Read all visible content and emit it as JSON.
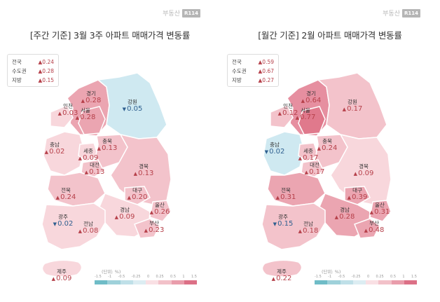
{
  "brand": {
    "name": "부동산",
    "badge": "R114"
  },
  "up_arrow": "▲",
  "down_arrow": "▼",
  "colors": {
    "base": "#f8d7dc",
    "light": "#f3c3cb",
    "medium": "#eba5b1",
    "strong": "#e0798c",
    "cool": "#cfe9f1",
    "up_text": "#b6404a",
    "down_text": "#2f5f8f"
  },
  "weekly": {
    "title": "[주간 기준] 3월 3주 아파트 매매가격 변동률",
    "summary": [
      {
        "name": "전국",
        "value": "0.24"
      },
      {
        "name": "수도권",
        "value": "0.28"
      },
      {
        "name": "지방",
        "value": "0.15"
      }
    ],
    "regions": {
      "gyeonggi": {
        "name": "경기",
        "value": "0.28",
        "dir": "up"
      },
      "incheon": {
        "name": "인천",
        "value": "0.03",
        "dir": "up"
      },
      "seoul": {
        "name": "서울",
        "value": "0.28",
        "dir": "up"
      },
      "gangwon": {
        "name": "강원",
        "value": "0.05",
        "dir": "down"
      },
      "chungnam": {
        "name": "충남",
        "value": "0.02",
        "dir": "up"
      },
      "sejong": {
        "name": "세종",
        "value": "0.09",
        "dir": "up"
      },
      "chungbuk": {
        "name": "충북",
        "value": "0.13",
        "dir": "up"
      },
      "daejeon": {
        "name": "대전",
        "value": "0.13",
        "dir": "up"
      },
      "gyeongbuk": {
        "name": "경북",
        "value": "0.13",
        "dir": "up"
      },
      "jeonbuk": {
        "name": "전북",
        "value": "0.24",
        "dir": "up"
      },
      "daegu": {
        "name": "대구",
        "value": "0.20",
        "dir": "up"
      },
      "ulsan": {
        "name": "울산",
        "value": "0.26",
        "dir": "up"
      },
      "gyeongnam": {
        "name": "경남",
        "value": "0.09",
        "dir": "up"
      },
      "gwangju": {
        "name": "광주",
        "value": "0.02",
        "dir": "down"
      },
      "jeonnam": {
        "name": "전남",
        "value": "0.08",
        "dir": "up"
      },
      "busan": {
        "name": "부산",
        "value": "0.23",
        "dir": "up"
      },
      "jeju": {
        "name": "제주",
        "value": "0.09",
        "dir": "up"
      }
    },
    "fills": {
      "gyeonggi": "#eba5b1",
      "seoul": "#eba5b1",
      "incheon": "#f8d7dc",
      "gangwon": "#cfe9f1",
      "chungnam": "#f8d7dc",
      "sejong": "#f8d7dc",
      "chungbuk": "#f3c3cb",
      "daejeon": "#f3c3cb",
      "gyeongbuk": "#f3c3cb",
      "jeonbuk": "#f3c3cb",
      "daegu": "#f3c3cb",
      "ulsan": "#f3c3cb",
      "gyeongnam": "#f8d7dc",
      "gwangju": "#f8d7dc",
      "jeonnam": "#f8d7dc",
      "busan": "#f3c3cb",
      "jeju": "#f8d7dc"
    },
    "scale": {
      "unit": "(단위: %)",
      "ticks": [
        "-1.5",
        "-1",
        "-0.5",
        "-0.25",
        "0",
        "0.25",
        "0.5",
        "1",
        "1.5"
      ],
      "colors": [
        "#6fbcc7",
        "#9fd1da",
        "#bfe0e8",
        "#dcedf2",
        "#f9e0e4",
        "#f2c1c9",
        "#e99dab",
        "#dc7086"
      ]
    }
  },
  "monthly": {
    "title": "[월간 기준] 2월 아파트 매매가격 변동률",
    "summary": [
      {
        "name": "전국",
        "value": "0.59"
      },
      {
        "name": "수도권",
        "value": "0.67"
      },
      {
        "name": "지방",
        "value": "0.27"
      }
    ],
    "regions": {
      "gyeonggi": {
        "name": "경기",
        "value": "0.64",
        "dir": "up"
      },
      "incheon": {
        "name": "인천",
        "value": "0.12",
        "dir": "up"
      },
      "seoul": {
        "name": "서울",
        "value": "0.77",
        "dir": "up"
      },
      "gangwon": {
        "name": "강원",
        "value": "0.17",
        "dir": "up"
      },
      "chungnam": {
        "name": "충남",
        "value": "0.02",
        "dir": "down"
      },
      "sejong": {
        "name": "세종",
        "value": "0.17",
        "dir": "up"
      },
      "chungbuk": {
        "name": "충북",
        "value": "0.24",
        "dir": "up"
      },
      "daejeon": {
        "name": "대전",
        "value": "0.17",
        "dir": "up"
      },
      "gyeongbuk": {
        "name": "경북",
        "value": "0.09",
        "dir": "up"
      },
      "jeonbuk": {
        "name": "전북",
        "value": "0.31",
        "dir": "up"
      },
      "daegu": {
        "name": "대구",
        "value": "0.39",
        "dir": "up"
      },
      "ulsan": {
        "name": "울산",
        "value": "0.31",
        "dir": "up"
      },
      "gyeongnam": {
        "name": "경남",
        "value": "0.28",
        "dir": "up"
      },
      "gwangju": {
        "name": "광주",
        "value": "0.15",
        "dir": "down"
      },
      "jeonnam": {
        "name": "전남",
        "value": "0.18",
        "dir": "up"
      },
      "busan": {
        "name": "부산",
        "value": "0.48",
        "dir": "up"
      },
      "jeju": {
        "name": "제주",
        "value": "0.22",
        "dir": "up"
      }
    },
    "fills": {
      "gyeonggi": "#e68fa0",
      "seoul": "#e0798c",
      "incheon": "#f3c3cb",
      "gangwon": "#f3c3cb",
      "chungnam": "#cfe9f1",
      "sejong": "#f3c3cb",
      "chungbuk": "#f3c3cb",
      "daejeon": "#f3c3cb",
      "gyeongbuk": "#f8d7dc",
      "jeonbuk": "#eba5b1",
      "daegu": "#eba5b1",
      "ulsan": "#eba5b1",
      "gyeongnam": "#eba5b1",
      "gwangju": "#cfe9f1",
      "jeonnam": "#f3c3cb",
      "busan": "#eba5b1",
      "jeju": "#f3c3cb"
    },
    "scale": {
      "unit": "(단위: %)",
      "ticks": [
        "-1.5",
        "-1",
        "-0.5",
        "-0.25",
        "0",
        "0.25",
        "0.5",
        "1",
        "1.5"
      ],
      "colors": [
        "#6fbcc7",
        "#9fd1da",
        "#bfe0e8",
        "#dcedf2",
        "#f9e0e4",
        "#f2c1c9",
        "#e99dab",
        "#dc7086"
      ]
    }
  }
}
